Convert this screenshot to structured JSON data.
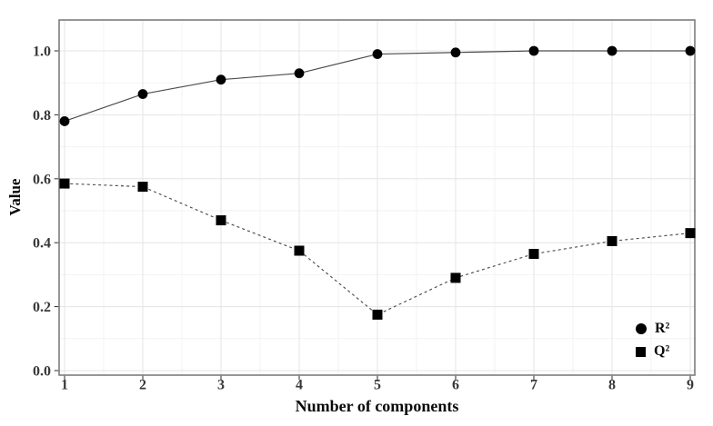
{
  "chart_data": {
    "type": "line",
    "title": "",
    "xlabel": "Number of components",
    "ylabel": "Value",
    "x": [
      1,
      2,
      3,
      4,
      5,
      6,
      7,
      8,
      9
    ],
    "series": [
      {
        "name": "R²",
        "marker": "circle",
        "line_style": "solid",
        "values": [
          0.78,
          0.865,
          0.91,
          0.93,
          0.99,
          0.995,
          1.0,
          1.0,
          1.0
        ]
      },
      {
        "name": "Q²",
        "marker": "square",
        "line_style": "dashed",
        "values": [
          0.585,
          0.575,
          0.47,
          0.375,
          0.175,
          0.29,
          0.365,
          0.405,
          0.43
        ]
      }
    ],
    "x_tick_labels": [
      "1",
      "2",
      "3",
      "4",
      "5",
      "6",
      "7",
      "8",
      "9"
    ],
    "y_tick_labels": [
      "0.0",
      "0.2",
      "0.4",
      "0.6",
      "0.8",
      "1.0"
    ],
    "xlim": [
      0.93,
      9.06
    ],
    "ylim": [
      -0.014,
      1.097
    ],
    "grid": {
      "major": true,
      "minor": true
    },
    "legend_position": "inside-bottom-right",
    "colors": {
      "background": "#ffffff",
      "panel_border": "#7d7d7d",
      "grid_major": "#e4e4e4",
      "grid_minor": "#f3f3f3",
      "tick_mark": "#2b2b2b",
      "tick_text": "#383838",
      "line": "#4d4d4d",
      "marker_fill": "#000000"
    }
  }
}
